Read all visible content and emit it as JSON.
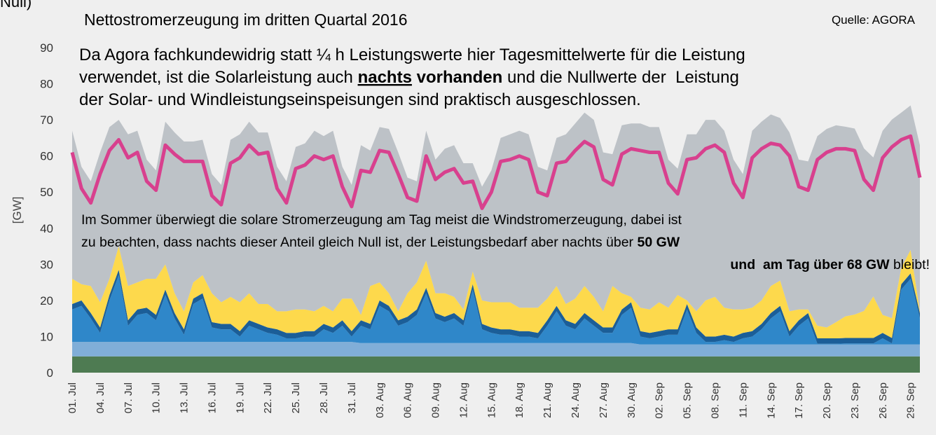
{
  "chart_data": {
    "type": "area",
    "title": "Nettostromerzeugung im dritten Quartal 2016",
    "corner_note": "Null)",
    "source": "Quelle: AGORA",
    "y_label": "[GW]",
    "ylim": [
      0,
      90
    ],
    "yticks": [
      0,
      10,
      20,
      30,
      40,
      50,
      60,
      70,
      80,
      90
    ],
    "grid": false,
    "categories": [
      "01. Jul",
      null,
      null,
      "04. Jul",
      null,
      null,
      "07. Jul",
      null,
      null,
      "10. Jul",
      null,
      null,
      "13. Jul",
      null,
      null,
      "16. Jul",
      null,
      null,
      "19. Jul",
      null,
      null,
      "22. Jul",
      null,
      null,
      "25. Jul",
      null,
      null,
      "28. Jul",
      null,
      null,
      "31. Jul",
      null,
      null,
      "03. Aug",
      null,
      null,
      "06. Aug",
      null,
      null,
      "09. Aug",
      null,
      null,
      "12. Aug",
      null,
      null,
      "15. Aug",
      null,
      null,
      "18. Aug",
      null,
      null,
      "21. Aug",
      null,
      null,
      "24. Aug",
      null,
      null,
      "27. Aug",
      null,
      null,
      "30. Aug",
      null,
      null,
      "02. Sep",
      null,
      null,
      "05. Sep",
      null,
      null,
      "08. Sep",
      null,
      null,
      "11. Sep",
      null,
      null,
      "14. Sep",
      null,
      null,
      "17. Sep",
      null,
      null,
      "20. Sep",
      null,
      null,
      "23. Sep",
      null,
      null,
      "26. Sep",
      null,
      null,
      "29. Sep",
      null
    ],
    "series": [
      {
        "type": "area",
        "color": "#4e7b52",
        "values": [
          4.5,
          4.5,
          4.5,
          4.5,
          4.5,
          4.5,
          4.5,
          4.5,
          4.5,
          4.5,
          4.5,
          4.5,
          4.5,
          4.5,
          4.5,
          4.5,
          4.5,
          4.5,
          4.5,
          4.5,
          4.5,
          4.5,
          4.5,
          4.5,
          4.5,
          4.5,
          4.5,
          4.5,
          4.5,
          4.5,
          4.5,
          4.5,
          4.5,
          4.5,
          4.5,
          4.5,
          4.5,
          4.5,
          4.5,
          4.5,
          4.5,
          4.5,
          4.5,
          4.5,
          4.5,
          4.5,
          4.5,
          4.5,
          4.5,
          4.5,
          4.5,
          4.5,
          4.5,
          4.5,
          4.5,
          4.5,
          4.5,
          4.5,
          4.5,
          4.5,
          4.5,
          4.5,
          4.5,
          4.5,
          4.5,
          4.5,
          4.5,
          4.5,
          4.5,
          4.5,
          4.5,
          4.5,
          4.5,
          4.5,
          4.5,
          4.5,
          4.5,
          4.5,
          4.5,
          4.5,
          4.5,
          4.5,
          4.5,
          4.5,
          4.5,
          4.5,
          4.5,
          4.5,
          4.5,
          4.5,
          4.5,
          4.5
        ]
      },
      {
        "type": "area",
        "color": "#80aed8",
        "values": [
          4,
          4,
          4,
          4,
          4,
          4,
          4,
          4,
          4,
          4,
          4,
          4,
          4,
          4,
          4,
          4,
          4,
          4,
          4,
          4,
          4,
          4,
          4,
          4,
          4,
          4,
          4,
          4,
          4,
          4,
          4,
          3.7,
          3.7,
          3.7,
          3.7,
          3.7,
          3.7,
          3.7,
          3.7,
          3.7,
          3.7,
          3.7,
          3.7,
          3.7,
          3.7,
          3.7,
          3.7,
          3.7,
          3.7,
          3.7,
          3.7,
          3.7,
          3.7,
          3.7,
          3.7,
          3.7,
          3.7,
          3.7,
          3.7,
          3.7,
          3.7,
          3.3,
          3.3,
          3.3,
          3.3,
          3.3,
          3.3,
          3.3,
          3.3,
          3.3,
          3.3,
          3.3,
          3.3,
          3.3,
          3.3,
          3.3,
          3.3,
          3.3,
          3.3,
          3.3,
          3.3,
          3.3,
          3.3,
          3.3,
          3.3,
          3.3,
          3.3,
          3.3,
          3.3,
          3.3,
          3.3,
          3.3
        ]
      },
      {
        "type": "area",
        "color": "#2f87c9",
        "values": [
          9,
          10,
          6.5,
          2.5,
          11.5,
          18.5,
          4.5,
          7.5,
          8,
          6,
          13,
          6.5,
          2,
          10.5,
          12,
          4,
          3.5,
          3.5,
          1.5,
          4.5,
          3.5,
          2.5,
          2,
          1,
          1,
          1.5,
          1.5,
          3.5,
          2.5,
          4.5,
          1.5,
          4.8,
          3.8,
          10.3,
          8.8,
          4.8,
          5.8,
          7.8,
          13.8,
          6.8,
          5.8,
          6.8,
          4.8,
          14.8,
          3.8,
          2.8,
          2.3,
          2.3,
          1.8,
          1.8,
          1.3,
          4.8,
          8.8,
          4.8,
          3.8,
          6.8,
          4.8,
          2.8,
          2.8,
          7.8,
          9.8,
          2.2,
          1.7,
          2.2,
          2.7,
          2.7,
          9.7,
          3.2,
          0.7,
          0.7,
          1.2,
          0.7,
          1.7,
          2.2,
          4.2,
          7.2,
          9.2,
          2.2,
          5.2,
          7.2,
          0.2,
          0.2,
          0.2,
          0.3,
          0.3,
          0.3,
          0.3,
          1.7,
          0.3,
          15.2,
          18.2,
          7.2
        ]
      },
      {
        "type": "area",
        "color": "#1b5e98",
        "values": [
          1.5,
          1.5,
          1.5,
          1.5,
          1.5,
          1.5,
          1.5,
          1.5,
          1.5,
          1.5,
          1.5,
          1.5,
          1.5,
          1.5,
          1.5,
          1.5,
          1.5,
          1.5,
          1.5,
          1.5,
          1.5,
          1.5,
          1.5,
          1.5,
          1.5,
          1.5,
          1.5,
          1.5,
          1.5,
          1.5,
          1.5,
          1.5,
          1.5,
          1.5,
          1.5,
          1.5,
          1.5,
          1.5,
          1.5,
          1.5,
          1.5,
          1.5,
          1.5,
          1.5,
          1.5,
          1.5,
          1.5,
          1.5,
          1.5,
          1.5,
          1.5,
          1.5,
          1.5,
          1.5,
          1.5,
          1.5,
          1.5,
          1.5,
          1.5,
          1.5,
          1.5,
          1.5,
          1.5,
          1.5,
          1.5,
          1.5,
          1.5,
          1.5,
          1.5,
          1.5,
          1.5,
          1.5,
          1.5,
          1.5,
          1.5,
          1.5,
          1.5,
          1.5,
          1.5,
          1.5,
          1.5,
          1.5,
          1.5,
          1.5,
          1.5,
          1.5,
          1.5,
          1.5,
          1.5,
          1.5,
          1.5,
          1.5
        ]
      },
      {
        "type": "area",
        "color": "#fdd94c",
        "values": [
          7,
          4.5,
          7.5,
          7,
          4.5,
          6.5,
          9.5,
          7.5,
          8,
          10,
          7,
          5.5,
          5,
          4.5,
          5,
          8,
          6,
          7.5,
          8,
          7.5,
          5.5,
          6.5,
          5,
          6,
          6.5,
          6,
          5.5,
          5,
          4.5,
          6,
          9,
          1.5,
          10.5,
          5,
          3.5,
          2.5,
          6.5,
          7.5,
          7.5,
          5.5,
          6.5,
          4.5,
          3,
          3.5,
          6.5,
          7,
          7.5,
          7.5,
          6.5,
          6.5,
          7,
          6,
          5.5,
          4.5,
          7,
          7.5,
          6.5,
          4.5,
          11.5,
          4.5,
          1.5,
          6.5,
          6.5,
          8,
          6,
          9.5,
          1,
          4.5,
          10,
          11,
          7.5,
          7.5,
          6.5,
          6.5,
          6.5,
          7.5,
          7,
          5.5,
          3,
          1,
          3.5,
          3,
          4.5,
          6,
          6.5,
          7.5,
          11.5,
          5,
          5.5,
          4.5,
          6.5,
          0.5
        ]
      },
      {
        "type": "area",
        "color": "#bdc2c7",
        "values": [
          41,
          32.5,
          29,
          41.5,
          42,
          35,
          42,
          42,
          33,
          30,
          39.5,
          44.5,
          47,
          39,
          37.5,
          33,
          32.5,
          43.5,
          46.5,
          47.5,
          47.5,
          47.5,
          40,
          36,
          45,
          46,
          50,
          47,
          50,
          36.5,
          31.5,
          47,
          37.5,
          43,
          45.5,
          44,
          32,
          28,
          36,
          37,
          40,
          42,
          40.5,
          30,
          31.5,
          36.5,
          45.5,
          46.5,
          49,
          48,
          39,
          35.5,
          41,
          47,
          48.5,
          48,
          49,
          44,
          36.5,
          46.5,
          48,
          51,
          50.5,
          48.5,
          41,
          35,
          46,
          49,
          50,
          49,
          49,
          41.5,
          37.5,
          49,
          49.5,
          47.5,
          45,
          49.5,
          41.5,
          41,
          52.5,
          55,
          54.5,
          52.5,
          51.5,
          45,
          38.5,
          51,
          55,
          43,
          40,
          46
        ]
      },
      {
        "type": "line",
        "color": "#d8408e",
        "values": [
          61,
          51,
          47,
          55,
          61.5,
          64.5,
          59.5,
          61,
          53,
          50.5,
          63,
          60.5,
          58.5,
          58.5,
          58.5,
          49,
          46.5,
          58,
          59.5,
          63,
          60.5,
          61,
          51,
          47,
          56.5,
          57.5,
          60,
          59,
          60,
          51.5,
          46,
          56,
          55.5,
          61.5,
          61,
          55,
          48.5,
          47.5,
          60,
          53.5,
          55.5,
          56.5,
          52.5,
          53,
          45.5,
          50,
          58.5,
          59,
          60,
          59,
          50,
          49,
          58,
          58.5,
          61.5,
          64,
          62.5,
          53.5,
          52,
          60.5,
          62,
          61.5,
          61,
          61,
          52.5,
          49.5,
          59,
          59.5,
          62,
          63,
          61,
          52.5,
          48.5,
          59.5,
          62,
          63.5,
          63,
          60,
          51.5,
          50.5,
          59,
          61,
          62,
          62,
          61.5,
          53.5,
          50.5,
          59.5,
          62.5,
          64.5,
          65.5,
          54
        ]
      }
    ],
    "annotations": [
      {
        "lines": [
          [
            {
              "text": "Da Agora fachkundewidrig statt ¼ h Leistungswerte hier Tagesmittelwerte für die Leistung"
            }
          ],
          [
            {
              "text": "verwendet, ist die Solarleistung auch "
            },
            {
              "text": "nachts",
              "bold": true,
              "underline": true
            },
            {
              "text": " vorhanden",
              "bold": true
            },
            {
              "text": " und die Nullwerte der  Leistung"
            }
          ],
          [
            {
              "text": "der Solar- und Windleistungseinspeisungen sind praktisch ausgeschlossen."
            }
          ]
        ]
      },
      {
        "lines": [
          [
            {
              "text": "Im Sommer überwiegt die solare Stromerzeugung am Tag meist die Windstromerzeugung, dabei ist"
            }
          ],
          [
            {
              "text": "zu beachten, dass nachts dieser Anteil gleich Null ist, der Leistungsbedarf aber nachts über "
            },
            {
              "text": "50 GW",
              "bold": true
            }
          ],
          [
            {
              "text": "und  am Tag über 68 GW",
              "bold": true
            },
            {
              "text": " bleibt!"
            }
          ]
        ]
      }
    ]
  }
}
